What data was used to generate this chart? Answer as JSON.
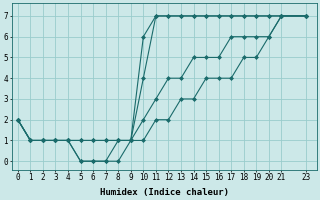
{
  "xlabel": "Humidex (Indice chaleur)",
  "bg_color": "#cce8e8",
  "line_color": "#1a6b6b",
  "grid_color": "#99cccc",
  "xticks": [
    0,
    1,
    2,
    3,
    4,
    5,
    6,
    7,
    8,
    9,
    10,
    11,
    12,
    13,
    14,
    15,
    16,
    17,
    18,
    19,
    20,
    21,
    23
  ],
  "yticks": [
    0,
    1,
    2,
    3,
    4,
    5,
    6,
    7
  ],
  "ylim": [
    -0.4,
    7.6
  ],
  "xlim": [
    -0.5,
    23.8
  ],
  "lines": [
    {
      "x": [
        0,
        1,
        2,
        3,
        4,
        5,
        6,
        7,
        8,
        9,
        10,
        11,
        12,
        13,
        14,
        15,
        16,
        17,
        18,
        19,
        20,
        21,
        23
      ],
      "y": [
        2,
        1,
        1,
        1,
        1,
        0,
        0,
        0,
        0,
        1,
        6,
        7,
        7,
        7,
        7,
        7,
        7,
        7,
        7,
        7,
        7,
        7,
        7
      ]
    },
    {
      "x": [
        0,
        1,
        2,
        3,
        4,
        5,
        6,
        7,
        8,
        9,
        10,
        11,
        12,
        13,
        14,
        15,
        16,
        17,
        18,
        19,
        20,
        21,
        23
      ],
      "y": [
        2,
        1,
        1,
        1,
        1,
        0,
        0,
        0,
        1,
        1,
        4,
        7,
        7,
        7,
        7,
        7,
        7,
        7,
        7,
        7,
        7,
        7,
        7
      ]
    },
    {
      "x": [
        0,
        1,
        2,
        3,
        4,
        5,
        6,
        7,
        8,
        9,
        10,
        11,
        12,
        13,
        14,
        15,
        16,
        17,
        18,
        19,
        20,
        21,
        23
      ],
      "y": [
        2,
        1,
        1,
        1,
        1,
        1,
        1,
        1,
        1,
        1,
        2,
        3,
        4,
        4,
        5,
        5,
        5,
        6,
        6,
        6,
        6,
        7,
        7
      ]
    },
    {
      "x": [
        0,
        1,
        2,
        3,
        4,
        5,
        6,
        7,
        8,
        9,
        10,
        11,
        12,
        13,
        14,
        15,
        16,
        17,
        18,
        19,
        20,
        21,
        23
      ],
      "y": [
        2,
        1,
        1,
        1,
        1,
        1,
        1,
        1,
        1,
        1,
        1,
        2,
        2,
        3,
        3,
        4,
        4,
        4,
        5,
        5,
        6,
        7,
        7
      ]
    }
  ]
}
